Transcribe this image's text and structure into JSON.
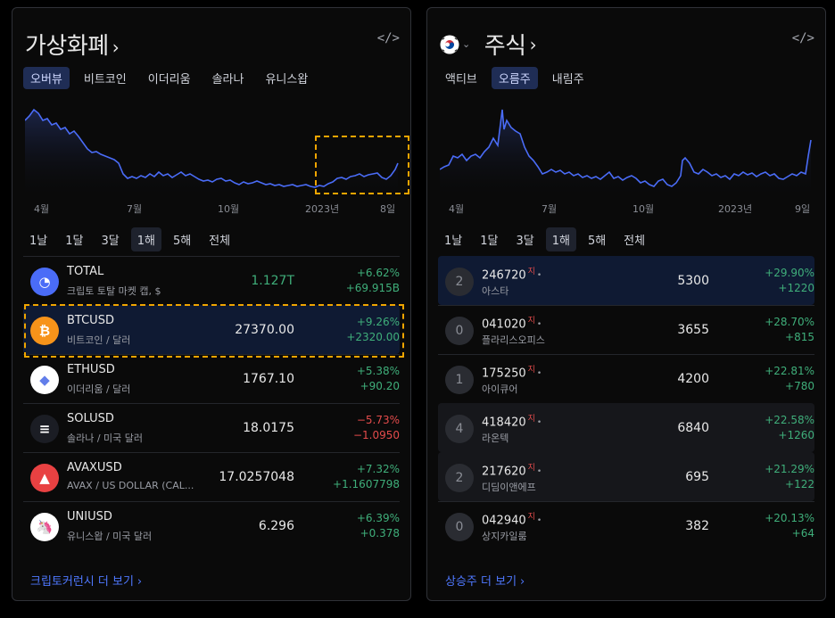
{
  "crypto": {
    "title": "가상화폐",
    "title_chevron": "›",
    "embed_icon": "</>",
    "tabs": [
      {
        "label": "오버뷰",
        "active": true
      },
      {
        "label": "비트코인",
        "active": false
      },
      {
        "label": "이더리움",
        "active": false
      },
      {
        "label": "솔라나",
        "active": false
      },
      {
        "label": "유니스왑",
        "active": false
      }
    ],
    "chart_data": {
      "type": "area",
      "x_ticks": [
        "4월",
        "7월",
        "10월",
        "2023년",
        "8일"
      ],
      "series_color": "#4a6cf7"
    },
    "ranges": [
      {
        "label": "1날",
        "active": false
      },
      {
        "label": "1달",
        "active": false
      },
      {
        "label": "3달",
        "active": false
      },
      {
        "label": "1해",
        "active": true
      },
      {
        "label": "5해",
        "active": false
      },
      {
        "label": "전체",
        "active": false
      }
    ],
    "rows": [
      {
        "symbol": "TOTAL",
        "sub": "크립토 토탈 마켓 캡, $",
        "price": "1.127T",
        "chg_pct": "+6.62%",
        "chg_abs": "+69.915B",
        "dir": "pos",
        "logo_color": "#4a6cf7",
        "logo_glyph": "◔",
        "logo_icon": "total-market-cap-icon"
      },
      {
        "symbol": "BTCUSD",
        "sub": "비트코인 / 달러",
        "price": "27370.00",
        "chg_pct": "+9.26%",
        "chg_abs": "+2320.00",
        "dir": "pos",
        "logo_color": "#f7931a",
        "logo_glyph": "₿",
        "logo_icon": "bitcoin-icon"
      },
      {
        "symbol": "ETHUSD",
        "sub": "이더리움 / 달러",
        "price": "1767.10",
        "chg_pct": "+5.38%",
        "chg_abs": "+90.20",
        "dir": "pos",
        "logo_color": "#ffffff",
        "logo_glyph": "◆",
        "logo_icon": "ethereum-icon"
      },
      {
        "symbol": "SOLUSD",
        "sub": "솔라나 / 미국 달러",
        "price": "18.0175",
        "chg_pct": "−5.73%",
        "chg_abs": "−1.0950",
        "dir": "neg",
        "logo_color": "#1b1d24",
        "logo_glyph": "≡",
        "logo_icon": "solana-icon"
      },
      {
        "symbol": "AVAXUSD",
        "sub": "AVAX / US DOLLAR (CAL...",
        "price": "17.0257048",
        "chg_pct": "+7.32%",
        "chg_abs": "+1.1607798",
        "dir": "pos",
        "logo_color": "#e84142",
        "logo_glyph": "▲",
        "logo_icon": "avalanche-icon"
      },
      {
        "symbol": "UNIUSD",
        "sub": "유니스왑 / 미국 달러",
        "price": "6.296",
        "chg_pct": "+6.39%",
        "chg_abs": "+0.378",
        "dir": "pos",
        "logo_color": "#ffffff",
        "logo_glyph": "🦄",
        "logo_icon": "uniswap-icon"
      }
    ],
    "footer": "크립토커런시 더 보기",
    "footer_chevron": "›"
  },
  "stock": {
    "flag_icon": "korea-flag-icon",
    "flag_chevron": "⌄",
    "title": "주식",
    "title_chevron": "›",
    "embed_icon": "</>",
    "tabs": [
      {
        "label": "액티브",
        "active": false
      },
      {
        "label": "오름주",
        "active": true
      },
      {
        "label": "내림주",
        "active": false
      }
    ],
    "chart_data": {
      "type": "area",
      "x_ticks": [
        "4월",
        "7월",
        "10월",
        "2023년",
        "9일"
      ],
      "series_color": "#4a6cf7"
    },
    "ranges": [
      {
        "label": "1날",
        "active": false
      },
      {
        "label": "1달",
        "active": false
      },
      {
        "label": "3달",
        "active": false
      },
      {
        "label": "1해",
        "active": true
      },
      {
        "label": "5해",
        "active": false
      },
      {
        "label": "전체",
        "active": false
      }
    ],
    "rows": [
      {
        "rank": "2",
        "code": "246720",
        "tag": "지",
        "dot": "•",
        "name": "아스타",
        "price": "5300",
        "chg_pct": "+29.90%",
        "chg_abs": "+1220",
        "hl": "hl"
      },
      {
        "rank": "0",
        "code": "041020",
        "tag": "지",
        "dot": "•",
        "name": "플라리스오피스",
        "price": "3655",
        "chg_pct": "+28.70%",
        "chg_abs": "+815",
        "hl": ""
      },
      {
        "rank": "1",
        "code": "175250",
        "tag": "지",
        "dot": "•",
        "name": "아이큐어",
        "price": "4200",
        "chg_pct": "+22.81%",
        "chg_abs": "+780",
        "hl": ""
      },
      {
        "rank": "4",
        "code": "418420",
        "tag": "지",
        "dot": "•",
        "name": "라온텍",
        "price": "6840",
        "chg_pct": "+22.58%",
        "chg_abs": "+1260",
        "hl": "hl2"
      },
      {
        "rank": "2",
        "code": "217620",
        "tag": "지",
        "dot": "•",
        "name": "디딤이앤에프",
        "price": "695",
        "chg_pct": "+21.29%",
        "chg_abs": "+122",
        "hl": "hl2"
      },
      {
        "rank": "0",
        "code": "042940",
        "tag": "지",
        "dot": "•",
        "name": "상지카일룸",
        "price": "382",
        "chg_pct": "+20.13%",
        "chg_abs": "+64",
        "hl": ""
      }
    ],
    "footer": "상승주 더 보기",
    "footer_chevron": "›"
  }
}
